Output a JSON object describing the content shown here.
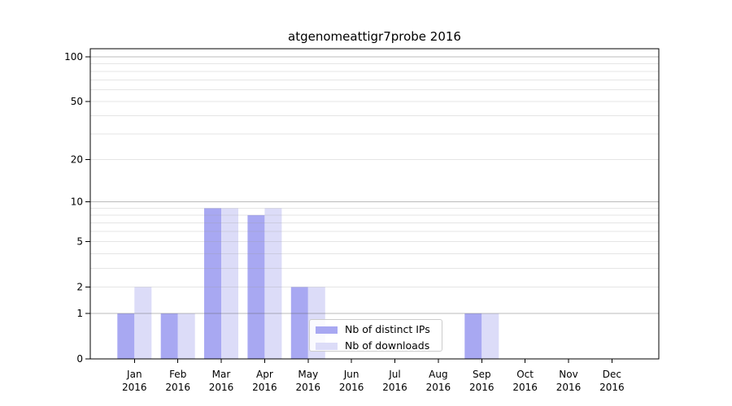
{
  "title": "atgenomeattigr7probe 2016",
  "legend": {
    "items": [
      {
        "label": "Nb of distinct IPs",
        "key": "distinct_ips"
      },
      {
        "label": "Nb of downloads",
        "key": "downloads"
      }
    ]
  },
  "colors": {
    "distinct_ips": "#a8a8f2",
    "downloads": "#dcdcf8",
    "grid_minor": "#999999",
    "grid_decade": "#555555",
    "axis": "#000000"
  },
  "chart_data": {
    "type": "bar",
    "title": "atgenomeattigr7probe 2016",
    "categories": [
      "Jan 2016",
      "Feb 2016",
      "Mar 2016",
      "Apr 2016",
      "May 2016",
      "Jun 2016",
      "Jul 2016",
      "Aug 2016",
      "Sep 2016",
      "Oct 2016",
      "Nov 2016",
      "Dec 2016"
    ],
    "series": [
      {
        "name": "Nb of distinct IPs",
        "values": [
          1,
          1,
          9,
          8,
          2,
          0,
          0,
          0,
          1,
          0,
          0,
          0
        ]
      },
      {
        "name": "Nb of downloads",
        "values": [
          2,
          1,
          9,
          9,
          2,
          0,
          0,
          0,
          1,
          0,
          0,
          0
        ]
      }
    ],
    "yscale": "log10(1+x)",
    "ylim": [
      0,
      115
    ],
    "yticks": [
      0,
      1,
      2,
      5,
      10,
      20,
      50,
      100
    ],
    "grid_minor_values": [
      2,
      3,
      4,
      5,
      6,
      7,
      8,
      9,
      20,
      30,
      40,
      50,
      60,
      70,
      80,
      90
    ],
    "grid_decade_values": [
      1,
      10,
      100
    ],
    "grid": "on",
    "legend_position": "lower center-left"
  }
}
